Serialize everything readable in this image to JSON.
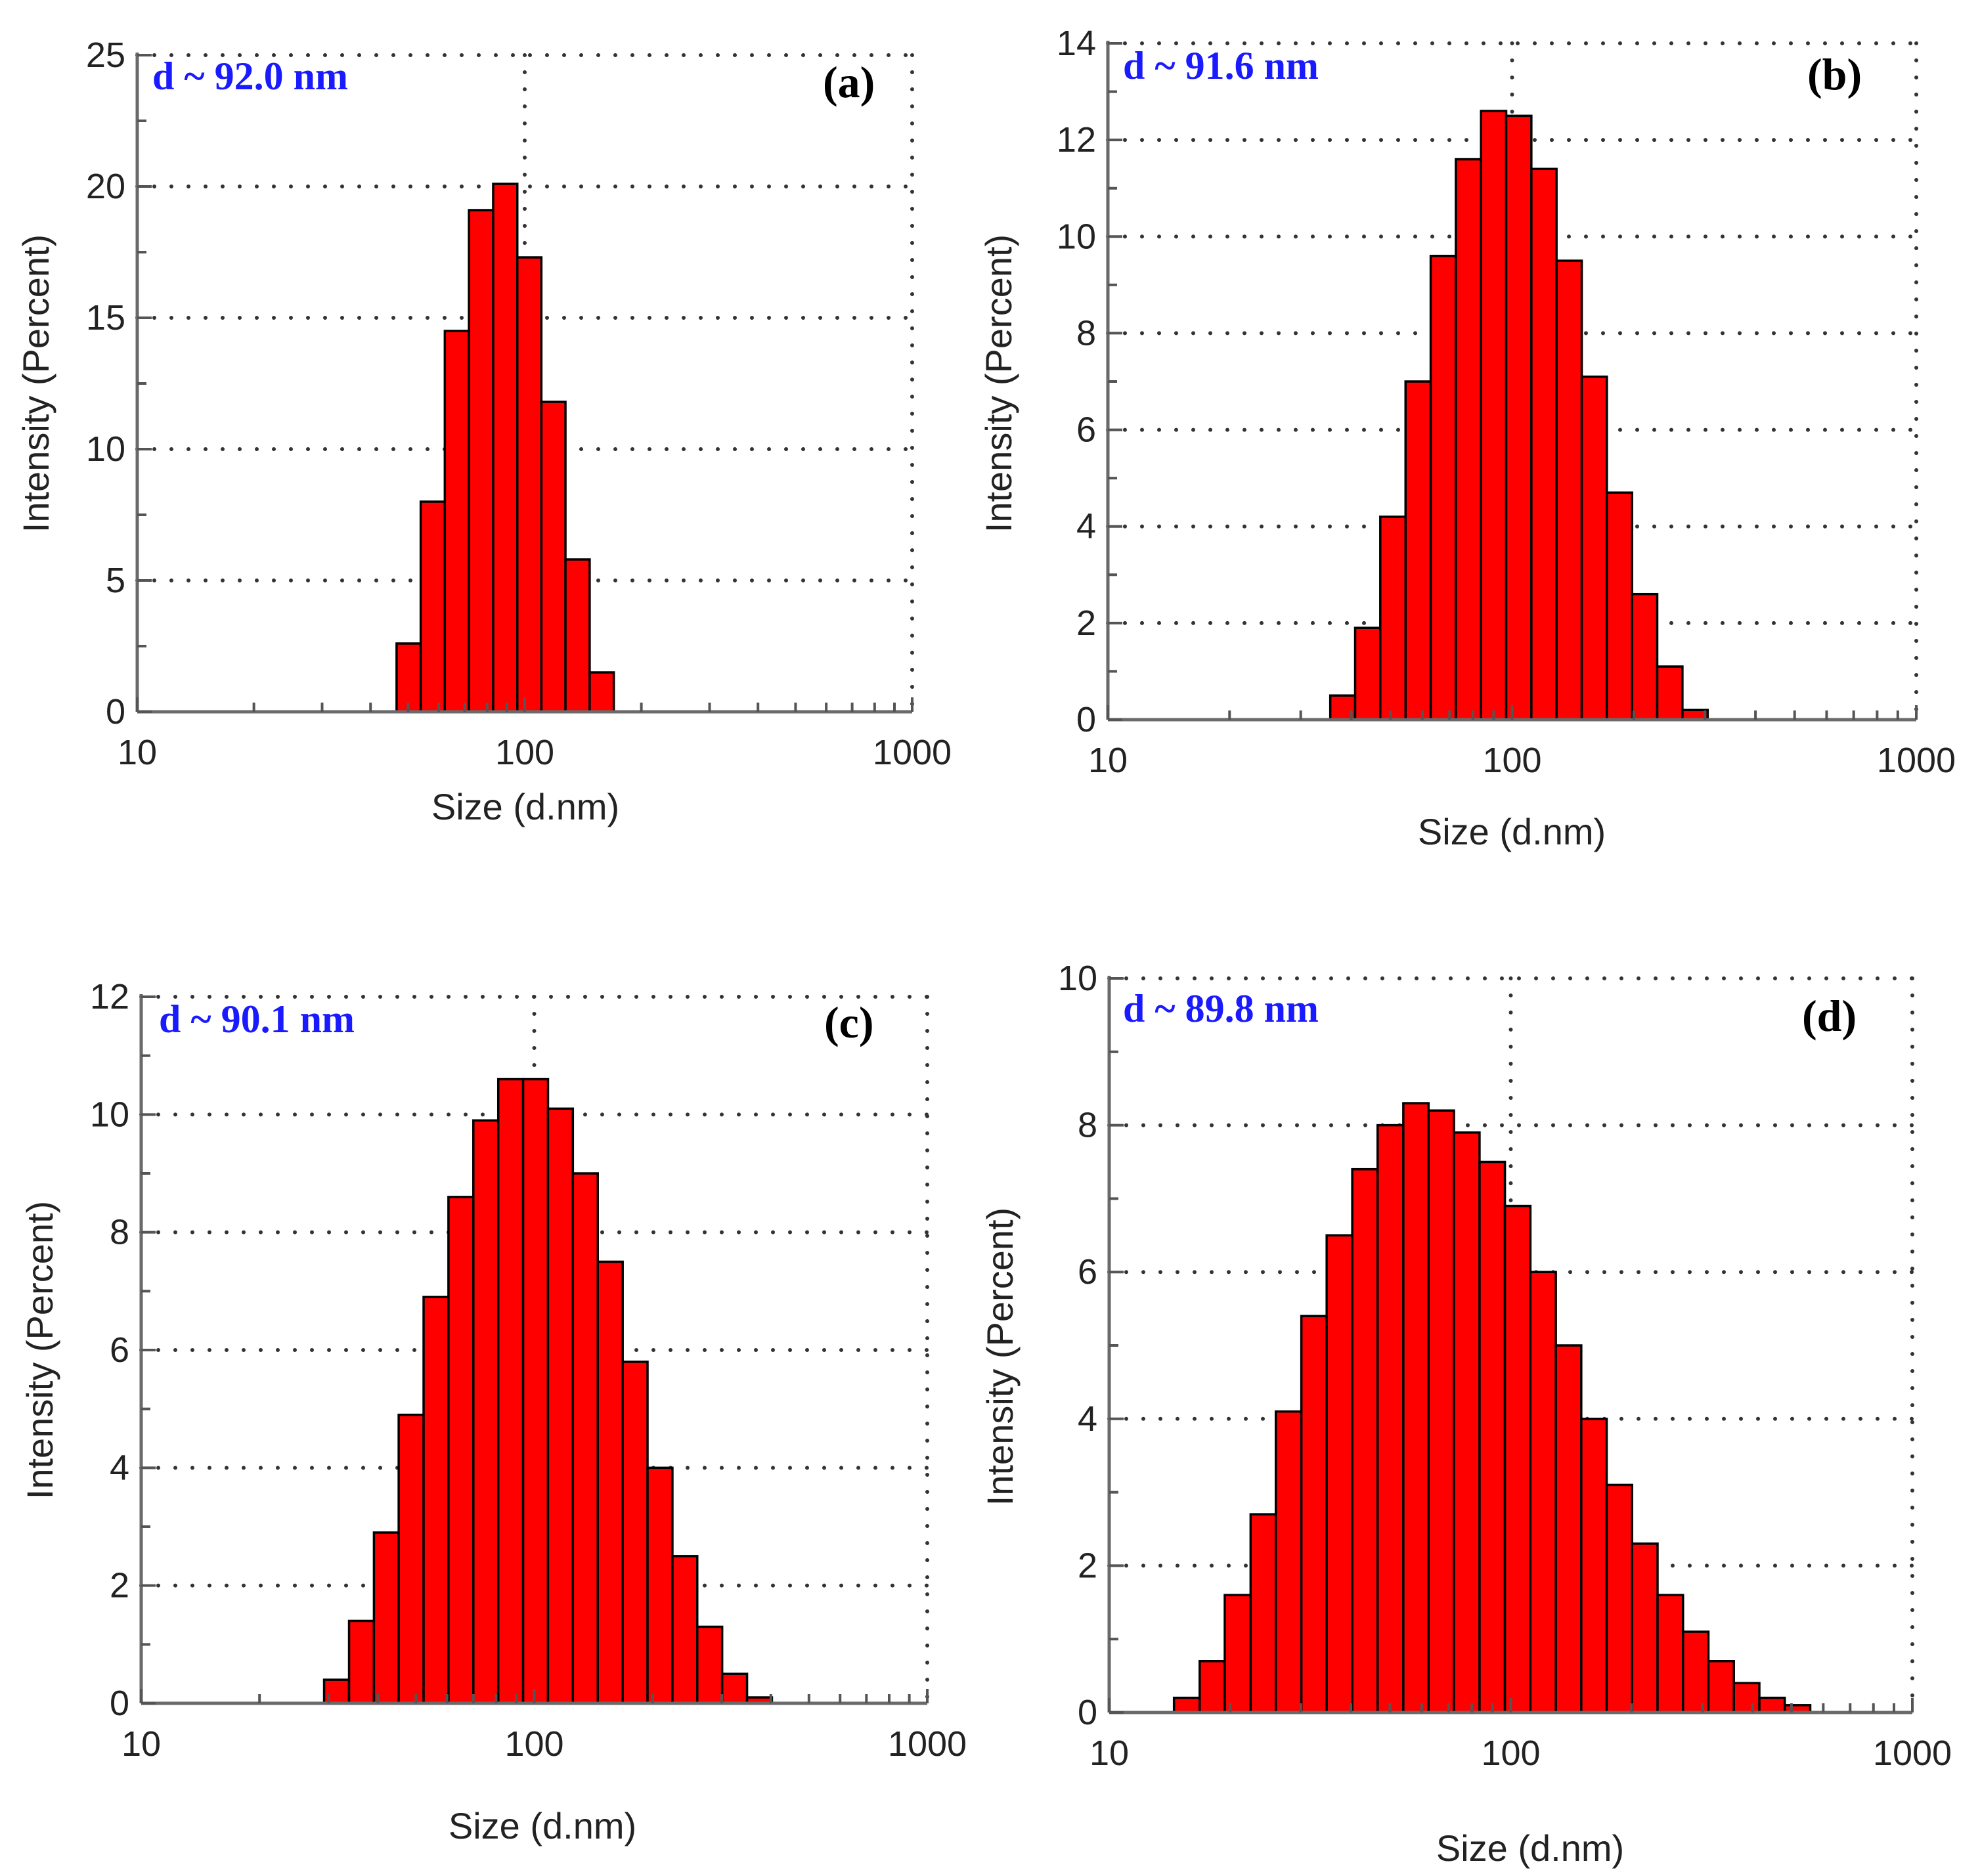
{
  "chart_data": [
    {
      "type": "bar",
      "title": "",
      "panel_label": "(a)",
      "annotation": "d ~ 92.0 nm",
      "xlabel": "Size (d.nm)",
      "ylabel": "Intensity (Percent)",
      "xscale": "log",
      "xlim": [
        10,
        1000
      ],
      "ylim": [
        0,
        25
      ],
      "xticks": [
        "10",
        "100",
        "1000"
      ],
      "yticks": [
        "0",
        "5",
        "10",
        "15",
        "20",
        "25"
      ],
      "grid": true,
      "bin_edges": [
        46.7,
        53.9,
        62.2,
        71.8,
        82.9,
        95.7,
        110.4,
        127.4,
        147.1,
        169.8
      ],
      "values": [
        2.6,
        8.0,
        14.5,
        19.1,
        20.1,
        17.3,
        11.8,
        5.8,
        1.5
      ]
    },
    {
      "type": "bar",
      "title": "",
      "panel_label": "(b)",
      "annotation": "d ~ 91.6 nm",
      "xlabel": "Size (d.nm)",
      "ylabel": "Intensity (Percent)",
      "xscale": "log",
      "xlim": [
        10,
        1000
      ],
      "ylim": [
        0,
        14
      ],
      "xticks": [
        "10",
        "100",
        "1000"
      ],
      "yticks": [
        "0",
        "2",
        "4",
        "6",
        "8",
        "10",
        "12",
        "14"
      ],
      "grid": true,
      "bin_edges": [
        35.5,
        40.9,
        47.2,
        54.5,
        62.9,
        72.6,
        83.8,
        96.7,
        111.6,
        128.8,
        148.7,
        171.6,
        198.1,
        228.6,
        263.9,
        304.6
      ],
      "values": [
        0.5,
        1.9,
        4.2,
        7.0,
        9.6,
        11.6,
        12.6,
        12.5,
        11.4,
        9.5,
        7.1,
        4.7,
        2.6,
        1.1,
        0.2
      ]
    },
    {
      "type": "bar",
      "title": "",
      "panel_label": "(c)",
      "annotation": "d ~ 90.1 nm",
      "xlabel": "Size (d.nm)",
      "ylabel": "Intensity (Percent)",
      "xscale": "log",
      "xlim": [
        10,
        1000
      ],
      "ylim": [
        0,
        12
      ],
      "xticks": [
        "10",
        "100",
        "1000"
      ],
      "yticks": [
        "0",
        "2",
        "4",
        "6",
        "8",
        "10",
        "12"
      ],
      "grid": true,
      "bin_edges": [
        29.2,
        33.8,
        39.1,
        45.2,
        52.3,
        60.5,
        70.0,
        81.0,
        93.7,
        108.4,
        125.4,
        145.1,
        167.9,
        194.2,
        224.7,
        259.9,
        300.7,
        347.9,
        402.5
      ],
      "values": [
        0.4,
        1.4,
        2.9,
        4.9,
        6.9,
        8.6,
        9.9,
        10.6,
        10.6,
        10.1,
        9.0,
        7.5,
        5.8,
        4.0,
        2.5,
        1.3,
        0.5,
        0.1
      ]
    },
    {
      "type": "bar",
      "title": "",
      "panel_label": "(d)",
      "annotation": "d ~ 89.8 nm",
      "xlabel": "Size (d.nm)",
      "ylabel": "Intensity (Percent)",
      "xscale": "log",
      "xlim": [
        10,
        1000
      ],
      "ylim": [
        0,
        10
      ],
      "xticks": [
        "10",
        "100",
        "1000"
      ],
      "yticks": [
        "0",
        "2",
        "4",
        "6",
        "8",
        "10"
      ],
      "grid": true,
      "bin_edges": [
        14.5,
        16.8,
        19.4,
        22.5,
        26.0,
        30.1,
        34.8,
        40.3,
        46.6,
        54.0,
        62.4,
        72.2,
        83.6,
        96.7,
        111.9,
        129.5,
        149.8,
        173.3,
        200.5,
        232.0,
        268.5,
        310.6,
        359.4,
        415.9,
        481.2,
        556.8
      ],
      "values": [
        0.2,
        0.7,
        1.6,
        2.7,
        4.1,
        5.4,
        6.5,
        7.4,
        8.0,
        8.3,
        8.2,
        7.9,
        7.5,
        6.9,
        6.0,
        5.0,
        4.0,
        3.1,
        2.3,
        1.6,
        1.1,
        0.7,
        0.4,
        0.2,
        0.1
      ]
    }
  ]
}
